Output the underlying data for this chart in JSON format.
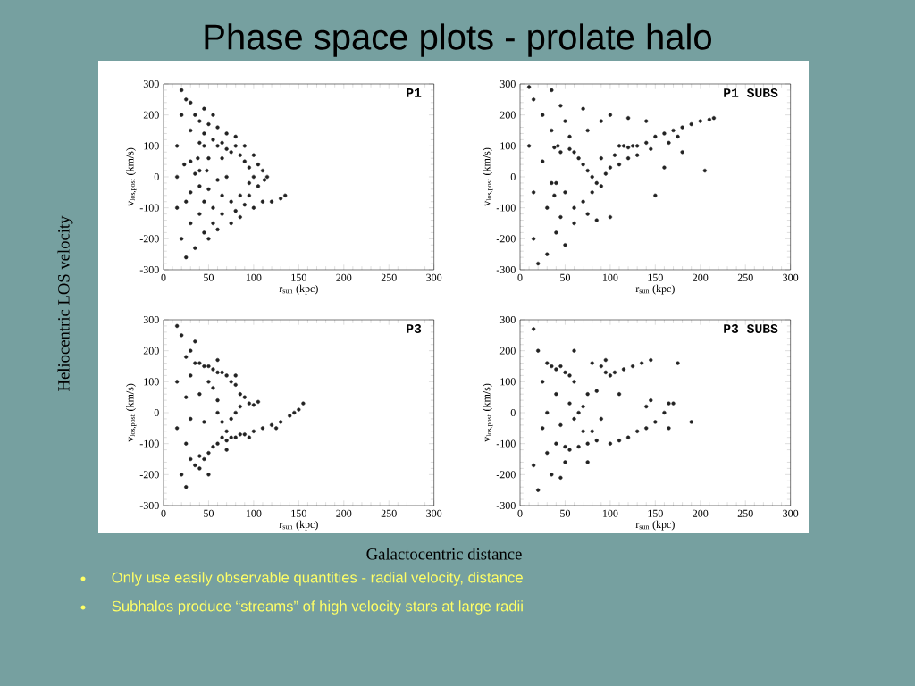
{
  "chart_data": [
    {
      "type": "scatter",
      "title": "P1",
      "xlabel": "r$_{sun}$ (kpc)",
      "ylabel": "v$_{los,post}$ (km/s)",
      "xlim": [
        0,
        300
      ],
      "ylim": [
        -300,
        300
      ],
      "xticks": [
        0,
        50,
        100,
        150,
        200,
        250,
        300
      ],
      "yticks": [
        -300,
        -200,
        -100,
        0,
        100,
        200,
        300
      ],
      "color": "#222222",
      "x": [
        20,
        25,
        20,
        15,
        15,
        15,
        20,
        25,
        30,
        35,
        30,
        30,
        30,
        30,
        35,
        40,
        45,
        40,
        45,
        38,
        40,
        40,
        45,
        40,
        45,
        50,
        55,
        60,
        50,
        48,
        50,
        55,
        55,
        50,
        60,
        65,
        70,
        65,
        60,
        65,
        65,
        60,
        70,
        75,
        80,
        75,
        80,
        75,
        80,
        85,
        90,
        85,
        90,
        85,
        90,
        95,
        95,
        95,
        100,
        100,
        105,
        105,
        110,
        112,
        115,
        100,
        110,
        120,
        130,
        135,
        23,
        25,
        35,
        70,
        45,
        55
      ],
      "values": [
        280,
        250,
        200,
        100,
        0,
        -100,
        -200,
        -260,
        240,
        200,
        150,
        50,
        -50,
        -150,
        -230,
        180,
        140,
        110,
        100,
        60,
        20,
        -30,
        -80,
        -120,
        -180,
        170,
        120,
        100,
        60,
        20,
        -40,
        -100,
        -150,
        -200,
        160,
        110,
        90,
        60,
        -10,
        -60,
        -120,
        -170,
        140,
        80,
        100,
        -80,
        -110,
        -150,
        130,
        70,
        50,
        -60,
        -90,
        -130,
        100,
        30,
        -20,
        -60,
        70,
        0,
        40,
        -30,
        20,
        -10,
        0,
        -100,
        -80,
        -80,
        -70,
        -60,
        40,
        -80,
        10,
        0,
        220,
        200
      ]
    },
    {
      "type": "scatter",
      "title": "P1 SUBS",
      "xlabel": "r$_{sun}$ (kpc)",
      "ylabel": "v$_{los,post}$ (km/s)",
      "xlim": [
        0,
        300
      ],
      "ylim": [
        -300,
        300
      ],
      "xticks": [
        0,
        50,
        100,
        150,
        200,
        250,
        300
      ],
      "yticks": [
        -300,
        -200,
        -100,
        0,
        100,
        200,
        300
      ],
      "color": "#222222",
      "x": [
        10,
        15,
        10,
        15,
        15,
        20,
        25,
        25,
        30,
        30,
        35,
        35,
        38,
        38,
        40,
        40,
        45,
        45,
        45,
        50,
        50,
        55,
        55,
        60,
        60,
        65,
        70,
        70,
        75,
        75,
        80,
        80,
        85,
        90,
        90,
        90,
        95,
        100,
        100,
        105,
        110,
        110,
        115,
        120,
        125,
        130,
        120,
        130,
        140,
        145,
        150,
        150,
        160,
        165,
        170,
        175,
        180,
        190,
        200,
        210,
        215,
        160,
        180,
        205,
        120,
        140,
        100,
        70,
        60,
        50,
        35,
        42,
        75,
        85
      ],
      "values": [
        290,
        250,
        100,
        -50,
        -200,
        -280,
        200,
        50,
        -100,
        -250,
        280,
        150,
        95,
        -60,
        -20,
        -180,
        230,
        80,
        -130,
        180,
        -50,
        130,
        90,
        80,
        -100,
        60,
        40,
        -80,
        20,
        150,
        0,
        -50,
        -20,
        -30,
        60,
        180,
        10,
        30,
        -130,
        70,
        40,
        100,
        100,
        95,
        100,
        100,
        60,
        70,
        110,
        90,
        130,
        -60,
        140,
        110,
        150,
        130,
        160,
        170,
        180,
        185,
        190,
        30,
        80,
        20,
        190,
        180,
        200,
        220,
        -150,
        -220,
        -20,
        100,
        -120,
        -140
      ]
    },
    {
      "type": "scatter",
      "title": "P3",
      "xlabel": "r$_{sun}$ (kpc)",
      "ylabel": "v$_{los,post}$ (km/s)",
      "xlim": [
        0,
        300
      ],
      "ylim": [
        -300,
        300
      ],
      "xticks": [
        0,
        50,
        100,
        150,
        200,
        250,
        300
      ],
      "yticks": [
        -300,
        -200,
        -100,
        0,
        100,
        200,
        300
      ],
      "color": "#222222",
      "x": [
        15,
        20,
        15,
        15,
        20,
        25,
        25,
        25,
        25,
        30,
        30,
        30,
        30,
        35,
        35,
        40,
        40,
        40,
        45,
        45,
        45,
        50,
        50,
        50,
        55,
        55,
        55,
        60,
        60,
        60,
        60,
        65,
        65,
        65,
        70,
        70,
        70,
        75,
        75,
        75,
        80,
        80,
        80,
        85,
        85,
        85,
        90,
        90,
        95,
        100,
        105,
        100,
        110,
        120,
        130,
        140,
        150,
        155,
        40,
        50,
        35,
        60,
        80,
        70,
        95,
        125,
        145
      ],
      "values": [
        280,
        250,
        100,
        -50,
        -200,
        -240,
        180,
        50,
        -100,
        200,
        120,
        -20,
        -150,
        160,
        -170,
        160,
        60,
        -140,
        150,
        -30,
        -150,
        150,
        100,
        -130,
        140,
        80,
        -110,
        130,
        40,
        -100,
        0,
        130,
        -30,
        -80,
        120,
        -60,
        -90,
        100,
        -20,
        -80,
        90,
        0,
        -80,
        60,
        20,
        -70,
        50,
        -70,
        30,
        25,
        35,
        -60,
        -50,
        -40,
        -30,
        -10,
        10,
        30,
        -180,
        -200,
        230,
        170,
        120,
        -120,
        -80,
        -50,
        0
      ]
    },
    {
      "type": "scatter",
      "title": "P3 SUBS",
      "xlabel": "r$_{sun}$ (kpc)",
      "ylabel": "v$_{los,post}$ (km/s)",
      "xlim": [
        0,
        300
      ],
      "ylim": [
        -300,
        300
      ],
      "xticks": [
        0,
        50,
        100,
        150,
        200,
        250,
        300
      ],
      "yticks": [
        -300,
        -200,
        -100,
        0,
        100,
        200,
        300
      ],
      "color": "#222222",
      "x": [
        15,
        20,
        15,
        20,
        25,
        25,
        30,
        30,
        30,
        35,
        35,
        40,
        40,
        40,
        45,
        45,
        50,
        50,
        55,
        55,
        55,
        60,
        60,
        65,
        65,
        70,
        70,
        75,
        75,
        80,
        80,
        85,
        85,
        90,
        90,
        95,
        95,
        100,
        100,
        105,
        110,
        115,
        120,
        125,
        130,
        135,
        140,
        145,
        140,
        150,
        160,
        165,
        170,
        165,
        190,
        175,
        60,
        50,
        45,
        75,
        110,
        145
      ],
      "values": [
        270,
        200,
        -170,
        -250,
        100,
        -50,
        160,
        0,
        -130,
        150,
        -200,
        140,
        60,
        -100,
        150,
        -40,
        130,
        -110,
        120,
        -120,
        30,
        -20,
        100,
        0,
        -110,
        20,
        -60,
        60,
        -100,
        -60,
        160,
        70,
        -90,
        150,
        -20,
        170,
        130,
        120,
        -100,
        130,
        -90,
        140,
        -80,
        150,
        -60,
        160,
        -50,
        170,
        20,
        -30,
        0,
        30,
        30,
        -50,
        -30,
        160,
        200,
        -160,
        -210,
        -160,
        60,
        40
      ]
    },
    {
      "type": "other",
      "title": "Phase space plots - prolate halo",
      "xlabel": "Galactocentric distance",
      "ylabel": "Heliocentric LOS velocity",
      "annotations": [
        "Only use easily observable quantities  - radial velocity, distance",
        "Subhalos produce “streams” of high velocity stars at large radii"
      ]
    }
  ]
}
